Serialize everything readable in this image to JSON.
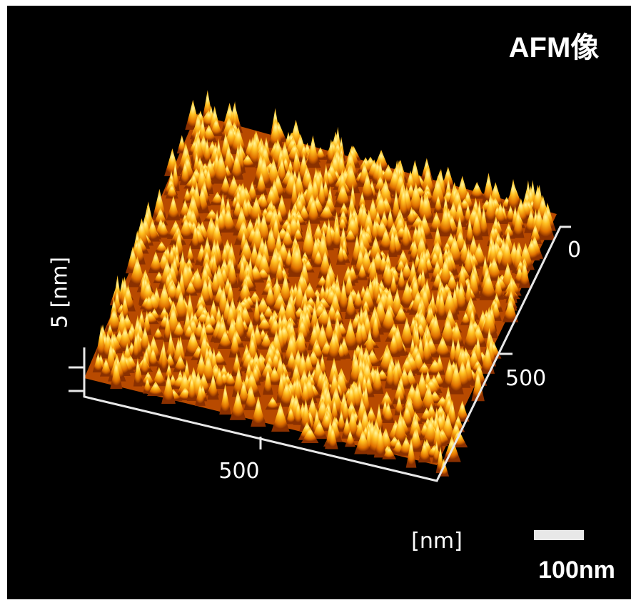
{
  "title": "AFM像",
  "z_axis_label": "5 [nm]",
  "y_axis_tick_labels": [
    "0",
    "500"
  ],
  "x_axis_tick_label": "500",
  "unit_label": "[nm]",
  "scale_bar_label": "100nm"
}
